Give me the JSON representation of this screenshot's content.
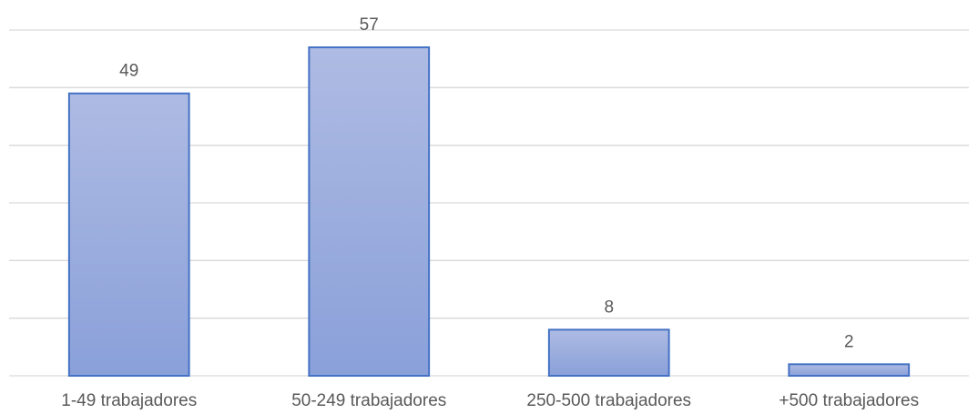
{
  "chart_data": {
    "type": "bar",
    "categories": [
      "1-49 trabajadores",
      "50-249 trabajadores",
      "250-500 trabajadores",
      "+500 trabajadores"
    ],
    "values": [
      49,
      57,
      8,
      2
    ],
    "color": "#4472c4",
    "ylim": [
      0,
      60
    ],
    "yticks": [
      0,
      10,
      20,
      30,
      40,
      50,
      60
    ],
    "grid": true
  }
}
